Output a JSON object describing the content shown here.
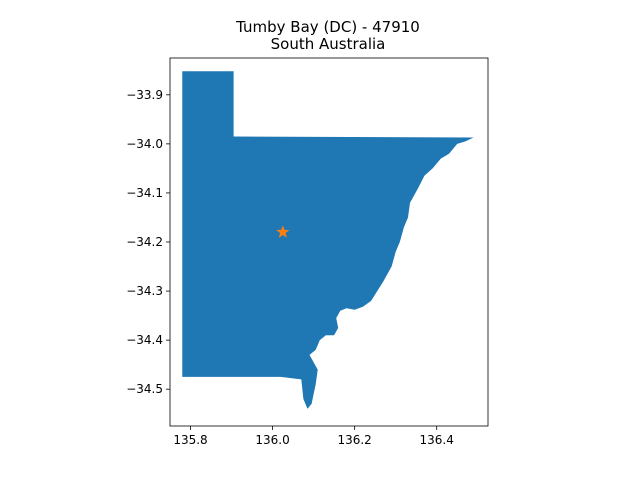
{
  "chart_data": {
    "type": "map",
    "title": "Tumby Bay (DC) - 47910",
    "subtitle": "South Australia",
    "xlim": [
      135.75,
      136.525
    ],
    "ylim": [
      -34.575,
      -33.825
    ],
    "x_ticks": [
      {
        "value": 135.8,
        "label": "135.8"
      },
      {
        "value": 136.0,
        "label": "136.0"
      },
      {
        "value": 136.2,
        "label": "136.2"
      },
      {
        "value": 136.4,
        "label": "136.4"
      }
    ],
    "y_ticks": [
      {
        "value": -33.9,
        "label": "−33.9"
      },
      {
        "value": -34.0,
        "label": "−34.0"
      },
      {
        "value": -34.1,
        "label": "−34.1"
      },
      {
        "value": -34.2,
        "label": "−34.2"
      },
      {
        "value": -34.3,
        "label": "−34.3"
      },
      {
        "value": -34.4,
        "label": "−34.4"
      },
      {
        "value": -34.5,
        "label": "−34.5"
      }
    ],
    "region_color": "#1f77b4",
    "marker_color": "#ff7f0e",
    "marker": {
      "shape": "star",
      "lon": 136.025,
      "lat": -34.18
    },
    "region_outline": [
      [
        135.78,
        -33.852
      ],
      [
        135.905,
        -33.852
      ],
      [
        135.905,
        -33.985
      ],
      [
        136.49,
        -33.987
      ],
      [
        136.47,
        -33.995
      ],
      [
        136.45,
        -34.0
      ],
      [
        136.43,
        -34.02
      ],
      [
        136.41,
        -34.03
      ],
      [
        136.39,
        -34.05
      ],
      [
        136.37,
        -34.065
      ],
      [
        136.355,
        -34.09
      ],
      [
        136.335,
        -34.12
      ],
      [
        136.33,
        -34.15
      ],
      [
        136.32,
        -34.17
      ],
      [
        136.31,
        -34.2
      ],
      [
        136.3,
        -34.22
      ],
      [
        136.29,
        -34.25
      ],
      [
        136.27,
        -34.28
      ],
      [
        136.255,
        -34.3
      ],
      [
        136.24,
        -34.32
      ],
      [
        136.22,
        -34.332
      ],
      [
        136.2,
        -34.338
      ],
      [
        136.18,
        -34.335
      ],
      [
        136.165,
        -34.34
      ],
      [
        136.155,
        -34.355
      ],
      [
        136.16,
        -34.375
      ],
      [
        136.15,
        -34.39
      ],
      [
        136.13,
        -34.39
      ],
      [
        136.115,
        -34.4
      ],
      [
        136.105,
        -34.42
      ],
      [
        136.09,
        -34.43
      ],
      [
        136.1,
        -34.445
      ],
      [
        136.11,
        -34.46
      ],
      [
        136.105,
        -34.49
      ],
      [
        136.1,
        -34.51
      ],
      [
        136.095,
        -34.53
      ],
      [
        136.085,
        -34.54
      ],
      [
        136.075,
        -34.52
      ],
      [
        136.07,
        -34.48
      ],
      [
        136.02,
        -34.475
      ],
      [
        135.78,
        -34.475
      ]
    ]
  }
}
